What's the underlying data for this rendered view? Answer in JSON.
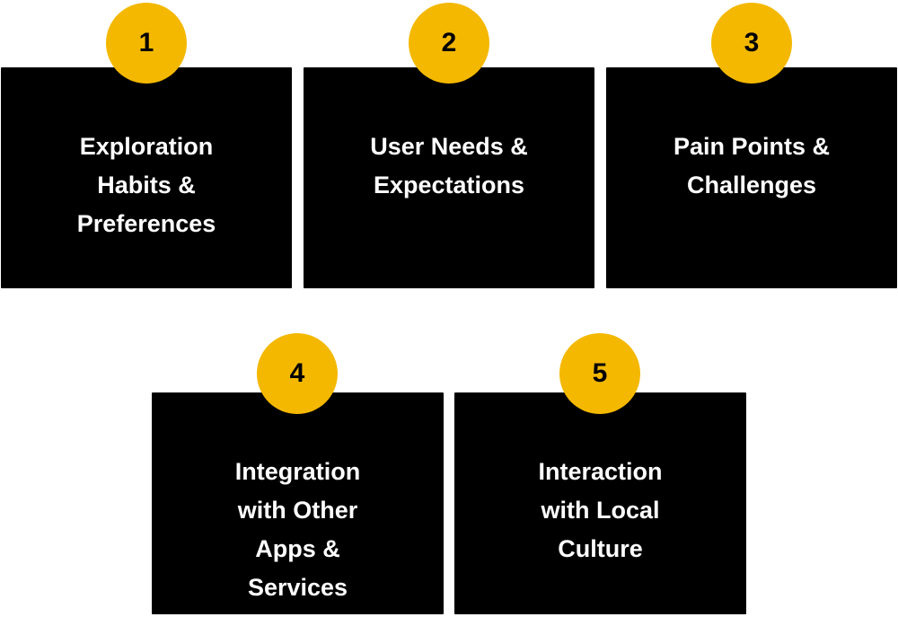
{
  "steps": [
    {
      "number": "1",
      "title": "Exploration\nHabits &\nPreferences"
    },
    {
      "number": "2",
      "title": "User Needs &\nExpectations"
    },
    {
      "number": "3",
      "title": "Pain Points &\nChallenges"
    },
    {
      "number": "4",
      "title": "Integration\nwith Other\nApps &\nServices"
    },
    {
      "number": "5",
      "title": "Interaction\nwith Local\nCulture"
    }
  ],
  "colors": {
    "card_background": "#000000",
    "card_text": "#ffffff",
    "badge_background": "#f4b800",
    "badge_text": "#000000"
  }
}
